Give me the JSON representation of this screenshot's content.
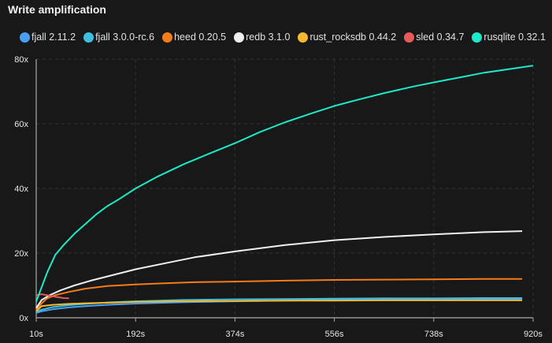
{
  "header": {
    "title": "Write amplification"
  },
  "chart_data": {
    "type": "line",
    "title": "Write amplification",
    "xlabel": "",
    "ylabel": "",
    "xlim": [
      10,
      920
    ],
    "ylim": [
      0,
      80
    ],
    "x_ticks": [
      10,
      192,
      374,
      556,
      738,
      920
    ],
    "x_tick_labels": [
      "10s",
      "192s",
      "374s",
      "556s",
      "738s",
      "920s"
    ],
    "y_ticks": [
      0,
      20,
      40,
      60,
      80
    ],
    "y_tick_labels": [
      "0x",
      "20x",
      "40x",
      "60x",
      "80x"
    ],
    "grid": true,
    "legend_position": "top",
    "series": [
      {
        "name": "fjall 2.11.2",
        "color": "#4a9ff5",
        "x": [
          10,
          20,
          40,
          70,
          100,
          150,
          192,
          280,
          374,
          466,
          556,
          647,
          738,
          830,
          900
        ],
        "y": [
          1.5,
          2.0,
          2.6,
          3.2,
          3.6,
          4.1,
          4.4,
          4.8,
          5.1,
          5.3,
          5.5,
          5.6,
          5.7,
          5.8,
          5.8
        ]
      },
      {
        "name": "fjall 3.0.0-rc.6",
        "color": "#40c0e0",
        "x": [
          10,
          20,
          40,
          70,
          100,
          150,
          192,
          280,
          374,
          466,
          556,
          647,
          738,
          830,
          900
        ],
        "y": [
          1.8,
          2.5,
          3.3,
          3.9,
          4.3,
          4.8,
          5.1,
          5.5,
          5.7,
          5.8,
          5.9,
          6.0,
          6.0,
          6.1,
          6.1
        ]
      },
      {
        "name": "heed 0.20.5",
        "color": "#f57c1a",
        "x": [
          10,
          20,
          30,
          45,
          70,
          100,
          140,
          192,
          250,
          300,
          374,
          466,
          556,
          647,
          738,
          830,
          900
        ],
        "y": [
          2.5,
          4.5,
          6.0,
          7.0,
          8.0,
          9.0,
          9.8,
          10.3,
          10.7,
          11.0,
          11.2,
          11.5,
          11.7,
          11.8,
          11.9,
          12.0,
          12.0
        ]
      },
      {
        "name": "redb 3.1.0",
        "color": "#f0f0f0",
        "x": [
          10,
          20,
          35,
          55,
          80,
          110,
          150,
          192,
          250,
          300,
          374,
          466,
          556,
          647,
          738,
          830,
          900
        ],
        "y": [
          3.0,
          5.5,
          7.0,
          8.5,
          10.0,
          11.5,
          13.2,
          15.0,
          17.0,
          18.7,
          20.5,
          22.5,
          24.0,
          25.0,
          25.8,
          26.5,
          26.8
        ]
      },
      {
        "name": "rust_rocksdb 0.44.2",
        "color": "#f5b82e",
        "x": [
          10,
          20,
          40,
          70,
          100,
          150,
          192,
          280,
          374,
          466,
          556,
          647,
          738,
          830,
          900
        ],
        "y": [
          2.0,
          3.6,
          4.0,
          4.3,
          4.5,
          4.7,
          4.9,
          5.1,
          5.2,
          5.3,
          5.3,
          5.4,
          5.4,
          5.4,
          5.4
        ]
      },
      {
        "name": "sled 0.34.7",
        "color": "#e85a5a",
        "x": [
          10,
          20,
          30,
          45,
          60,
          70
        ],
        "y": [
          7.0,
          7.3,
          7.0,
          6.5,
          6.1,
          6.0
        ]
      },
      {
        "name": "rusqlite 0.32.1",
        "color": "#1de9c8",
        "x": [
          10,
          20,
          30,
          45,
          60,
          80,
          100,
          120,
          140,
          160,
          192,
          230,
          280,
          330,
          374,
          420,
          466,
          510,
          556,
          600,
          647,
          700,
          738,
          790,
          830,
          880,
          920
        ],
        "y": [
          5.0,
          9.5,
          14.0,
          19.5,
          22.5,
          26.0,
          29.0,
          32.0,
          34.5,
          36.5,
          40.0,
          43.5,
          47.5,
          51.0,
          54.0,
          57.5,
          60.5,
          63.0,
          65.5,
          67.5,
          69.5,
          71.5,
          72.8,
          74.5,
          75.8,
          77.0,
          78.0
        ]
      }
    ]
  }
}
